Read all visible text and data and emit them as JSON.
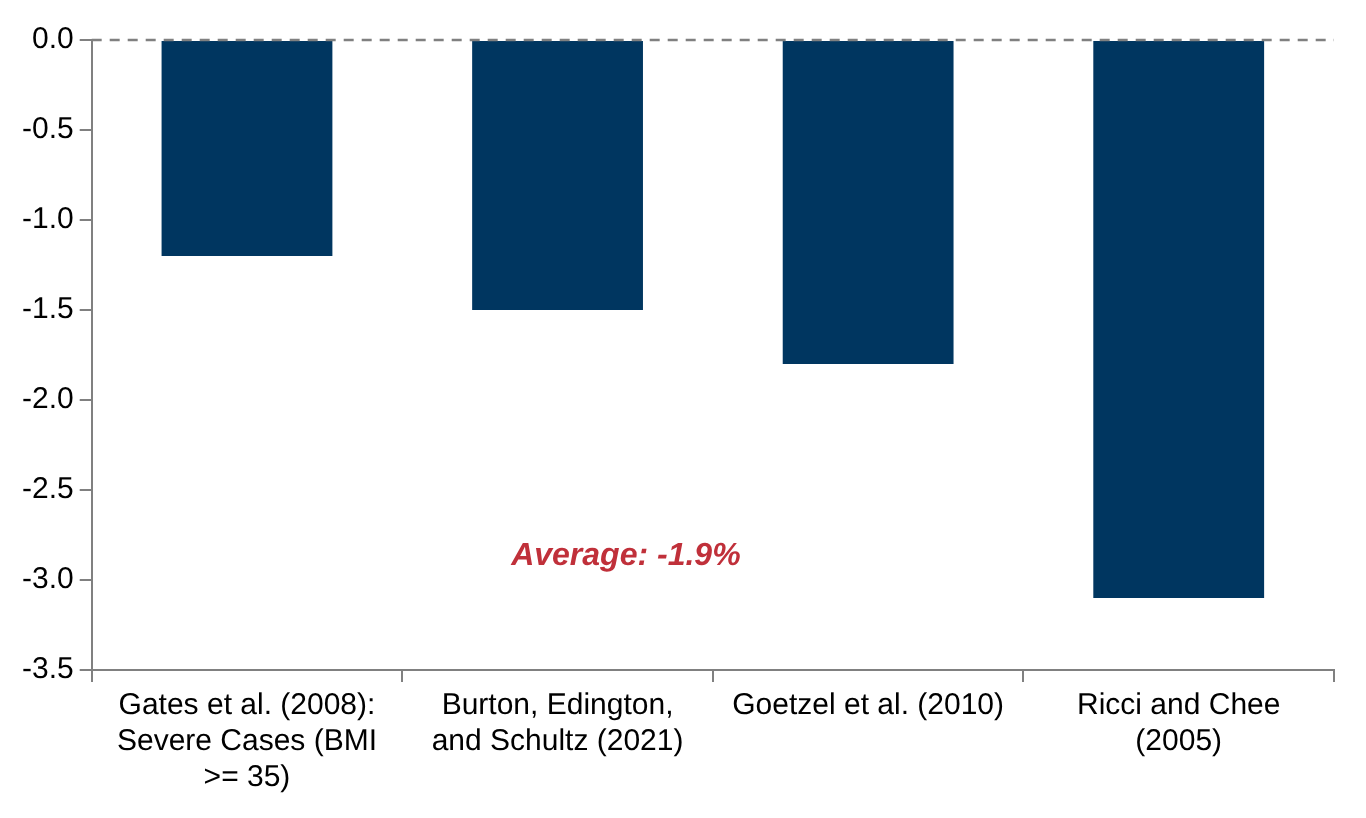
{
  "chart_data": {
    "type": "bar",
    "categories": [
      "Gates et al. (2008): Severe Cases (BMI >= 35)",
      "Burton, Edington, and Schultz (2021)",
      "Goetzel et al. (2010)",
      "Ricci and Chee (2005)"
    ],
    "values": [
      -1.2,
      -1.5,
      -1.8,
      -3.1
    ],
    "color": "#003660",
    "ylim": [
      -3.5,
      0
    ],
    "yticks": [
      {
        "value": 0,
        "label": "0.0"
      },
      {
        "value": -0.5,
        "label": "-0.5"
      },
      {
        "value": -1,
        "label": "-1.0"
      },
      {
        "value": -1.5,
        "label": "-1.5"
      },
      {
        "value": -2,
        "label": "-2.0"
      },
      {
        "value": -2.5,
        "label": "-2.5"
      },
      {
        "value": -3,
        "label": "-3.0"
      },
      {
        "value": -3.5,
        "label": "-3.5"
      }
    ],
    "ref_lines": [
      {
        "axis": "y",
        "value": 0,
        "color": "#808080",
        "line_style": "dashed"
      }
    ],
    "annotations": [
      "Average: -1.9%"
    ],
    "grid": false,
    "legend": false
  }
}
